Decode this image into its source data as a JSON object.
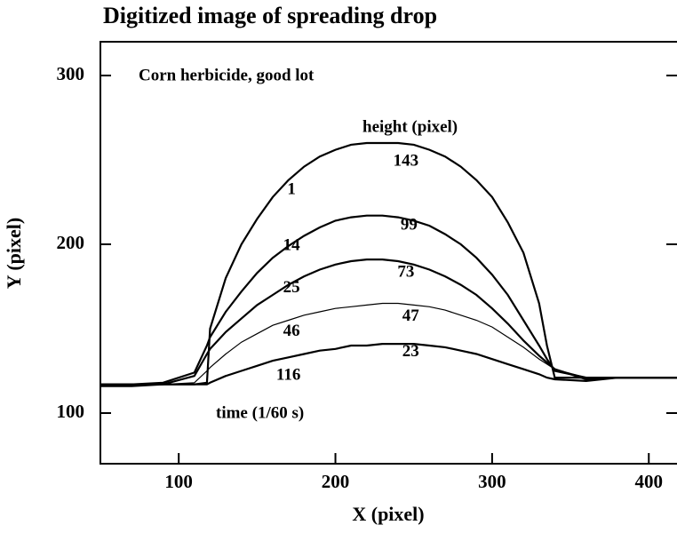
{
  "chart_data": {
    "type": "line",
    "title": "Digitized image of spreading drop",
    "xlabel": "X (pixel)",
    "ylabel": "Y (pixel)",
    "annotations": [
      "Corn herbicide, good lot",
      "height (pixel)",
      "time (1/60 s)"
    ],
    "xlim": [
      50,
      418
    ],
    "ylim": [
      70,
      320
    ],
    "xticks": [
      100,
      200,
      300,
      400
    ],
    "yticks": [
      100,
      200,
      300
    ],
    "x": [
      50,
      70,
      90,
      110,
      118,
      120,
      130,
      140,
      150,
      160,
      170,
      180,
      190,
      200,
      210,
      220,
      230,
      240,
      250,
      260,
      270,
      280,
      290,
      300,
      310,
      320,
      330,
      335,
      340,
      360,
      380,
      400,
      418
    ],
    "series": [
      {
        "name": "1",
        "height": "143",
        "color": "#000000",
        "values": [
          117,
          117,
          117,
          117,
          118,
          150,
          180,
          200,
          215,
          228,
          238,
          246,
          252,
          256,
          259,
          260,
          260,
          260,
          259,
          256,
          252,
          246,
          238,
          228,
          213,
          195,
          165,
          140,
          121,
          121,
          121,
          121,
          121
        ]
      },
      {
        "name": "14",
        "height": "99",
        "color": "#000000",
        "values": [
          117,
          117,
          118,
          124,
          140,
          145,
          160,
          172,
          183,
          192,
          199,
          205,
          210,
          214,
          216,
          217,
          217,
          216,
          214,
          211,
          206,
          200,
          192,
          182,
          170,
          155,
          140,
          132,
          125,
          121,
          121,
          121,
          121
        ]
      },
      {
        "name": "25",
        "height": "73",
        "color": "#000000",
        "values": [
          117,
          117,
          117,
          122,
          135,
          138,
          148,
          156,
          164,
          170,
          176,
          181,
          185,
          188,
          190,
          191,
          191,
          190,
          188,
          185,
          181,
          176,
          170,
          162,
          153,
          143,
          134,
          130,
          126,
          120,
          121,
          121,
          121
        ]
      },
      {
        "name": "46",
        "height": "47",
        "color": "#000000",
        "values": [
          117,
          117,
          117,
          118,
          125,
          127,
          135,
          142,
          147,
          152,
          155,
          158,
          160,
          162,
          163,
          164,
          165,
          165,
          164,
          163,
          161,
          158,
          155,
          151,
          145,
          139,
          132,
          129,
          126,
          121,
          121,
          121,
          121
        ]
      },
      {
        "name": "116",
        "height": "23",
        "color": "#000000",
        "values": [
          116,
          116,
          117,
          117,
          117,
          118,
          122,
          125,
          128,
          131,
          133,
          135,
          137,
          138,
          140,
          140,
          141,
          141,
          141,
          140,
          139,
          137,
          135,
          132,
          129,
          126,
          123,
          121,
          120,
          119,
          121,
          121,
          121
        ]
      }
    ]
  }
}
